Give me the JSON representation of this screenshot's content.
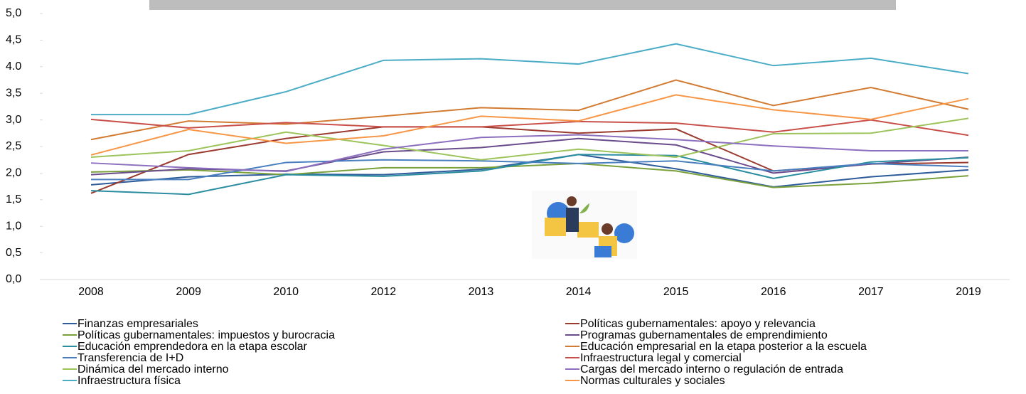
{
  "chart_data": {
    "type": "line",
    "categories": [
      "2008",
      "2009",
      "2010",
      "2012",
      "2013",
      "2014",
      "2015",
      "2016",
      "2017",
      "2019"
    ],
    "ylim": [
      0,
      5
    ],
    "yticks": [
      {
        "value": 0,
        "label": "0,0"
      },
      {
        "value": 0.5,
        "label": "0,5"
      },
      {
        "value": 1,
        "label": "1,0"
      },
      {
        "value": 1.5,
        "label": "1,5"
      },
      {
        "value": 2,
        "label": "2,0"
      },
      {
        "value": 2.5,
        "label": "2,5"
      },
      {
        "value": 3,
        "label": "3,0"
      },
      {
        "value": 3.5,
        "label": "3,5"
      },
      {
        "value": 4,
        "label": "4.0"
      },
      {
        "value": 4.5,
        "label": "4,5"
      },
      {
        "value": 5,
        "label": "5,0"
      }
    ],
    "series": [
      {
        "name": "Finanzas empresariales",
        "color": "#2e5c9a",
        "values": [
          1.78,
          1.93,
          1.98,
          1.97,
          2.07,
          2.35,
          2.08,
          1.74,
          1.93,
          2.06
        ]
      },
      {
        "name": "Políticas gubernamentales: apoyo y relevancia",
        "color": "#9b3a2e",
        "values": [
          1.62,
          2.35,
          2.65,
          2.87,
          2.87,
          2.75,
          2.83,
          2.04,
          2.17,
          2.2
        ]
      },
      {
        "name": "Políticas gubernamentales: impuestos y burocracia",
        "color": "#7aa03c",
        "values": [
          2.02,
          2.06,
          1.97,
          2.1,
          2.1,
          2.18,
          2.04,
          1.73,
          1.81,
          1.95
        ]
      },
      {
        "name": "Programas gubernamentales de emprendimiento",
        "color": "#6a4c8c",
        "values": [
          1.97,
          2.08,
          2.04,
          2.4,
          2.48,
          2.65,
          2.53,
          2.0,
          2.17,
          2.3
        ]
      },
      {
        "name": "Educación emprendedora en la etapa escolar",
        "color": "#2b8ea0",
        "values": [
          1.67,
          1.6,
          1.97,
          1.94,
          2.04,
          2.35,
          2.33,
          1.9,
          2.21,
          2.29
        ]
      },
      {
        "name": "Educación empresarial en la etapa posterior a la escuela",
        "color": "#d27b32",
        "values": [
          2.63,
          2.98,
          2.92,
          3.07,
          3.23,
          3.18,
          3.75,
          3.27,
          3.61,
          3.2
        ]
      },
      {
        "name": "Transferencia de I+D",
        "color": "#4a7fbf",
        "values": [
          1.88,
          1.88,
          2.2,
          2.25,
          2.23,
          2.18,
          2.23,
          2.04,
          2.18,
          2.12
        ]
      },
      {
        "name": "Infraestructura legal y comercial",
        "color": "#c9504a",
        "values": [
          3.01,
          2.85,
          2.95,
          2.87,
          2.87,
          2.97,
          2.94,
          2.77,
          3.0,
          2.71
        ]
      },
      {
        "name": "Dinámica del mercado interno",
        "color": "#9dc45a",
        "values": [
          2.3,
          2.42,
          2.77,
          2.52,
          2.25,
          2.45,
          2.3,
          2.74,
          2.75,
          3.03
        ]
      },
      {
        "name": "Cargas del mercado interno o regulación de entrada",
        "color": "#8c6fbf",
        "values": [
          2.19,
          2.1,
          2.03,
          2.45,
          2.67,
          2.72,
          2.63,
          2.51,
          2.42,
          2.42
        ]
      },
      {
        "name": "Infraestructura física",
        "color": "#4bacc6",
        "values": [
          3.1,
          3.1,
          3.53,
          4.12,
          4.15,
          4.05,
          4.43,
          4.02,
          4.16,
          3.87
        ]
      },
      {
        "name": "Normas culturales y sociales",
        "color": "#f79646",
        "values": [
          2.34,
          2.82,
          2.56,
          2.7,
          3.07,
          2.98,
          3.47,
          3.19,
          3.01,
          3.4
        ]
      }
    ]
  }
}
